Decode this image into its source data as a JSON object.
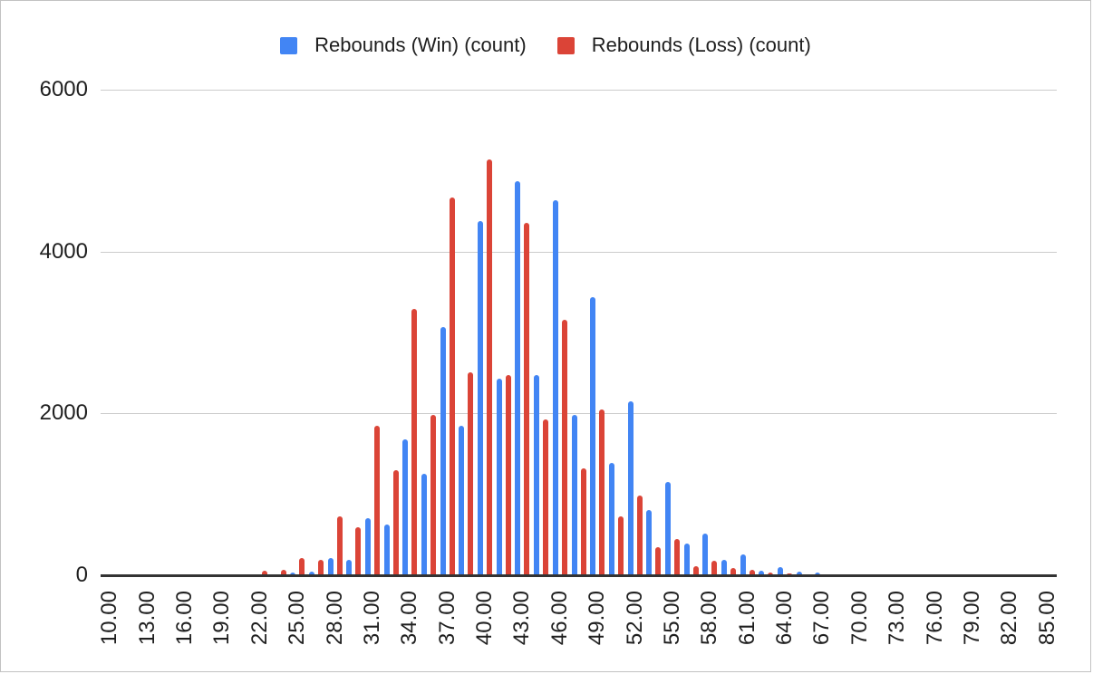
{
  "chart_data": {
    "type": "bar",
    "title": "",
    "xlabel": "",
    "ylabel": "",
    "grid": true,
    "legend_position": "top-center",
    "ylim": [
      0,
      6000
    ],
    "yticks": [
      0,
      2000,
      4000,
      6000
    ],
    "ytick_labels": [
      "0",
      "2000",
      "4000",
      "6000"
    ],
    "bin_width": 1.5,
    "categories": [
      10,
      11.5,
      13,
      14.5,
      16,
      17.5,
      19,
      20.5,
      22,
      23.5,
      25,
      26.5,
      28,
      29.5,
      31,
      32.5,
      34,
      35.5,
      37,
      38.5,
      40,
      41.5,
      43,
      44.5,
      46,
      47.5,
      49,
      50.5,
      52,
      53.5,
      55,
      56.5,
      58,
      59.5,
      61,
      62.5,
      64,
      65.5,
      67,
      68.5,
      70,
      71.5,
      73,
      74.5,
      76,
      77.5,
      79,
      80.5,
      82,
      83.5,
      85
    ],
    "x_tick_labels": [
      "10.00",
      "13.00",
      "16.00",
      "19.00",
      "22.00",
      "25.00",
      "28.00",
      "31.00",
      "34.00",
      "37.00",
      "40.00",
      "43.00",
      "46.00",
      "49.00",
      "52.00",
      "55.00",
      "58.00",
      "61.00",
      "64.00",
      "67.00",
      "70.00",
      "73.00",
      "76.00",
      "79.00",
      "82.00",
      "85.00"
    ],
    "x_tick_every": 2,
    "series": [
      {
        "name": "Rebounds (Win) (count)",
        "color": "#4285F4",
        "values": [
          0,
          0,
          0,
          0,
          0,
          0,
          0,
          0,
          0,
          0,
          35,
          40,
          210,
          190,
          700,
          630,
          1680,
          1250,
          3070,
          1850,
          4380,
          2430,
          4870,
          2470,
          4630,
          1980,
          3440,
          1390,
          2150,
          810,
          1150,
          390,
          520,
          195,
          260,
          60,
          100,
          45,
          35,
          0,
          0,
          0,
          0,
          0,
          0,
          0,
          0,
          0,
          0,
          0,
          0
        ]
      },
      {
        "name": "Rebounds (Loss) (count)",
        "color": "#DB4437",
        "values": [
          0,
          0,
          0,
          0,
          0,
          0,
          0,
          0,
          55,
          65,
          210,
          190,
          725,
          590,
          1850,
          1300,
          3290,
          1980,
          4670,
          2510,
          5140,
          2470,
          4350,
          1920,
          3160,
          1320,
          2050,
          730,
          980,
          350,
          450,
          110,
          175,
          95,
          70,
          30,
          25,
          0,
          0,
          0,
          0,
          0,
          0,
          0,
          0,
          0,
          0,
          0,
          0,
          0,
          0
        ]
      }
    ],
    "colors": {
      "axis_line": "#333333",
      "gridline": "#cccccc",
      "label_text": "#1f1f1f"
    }
  }
}
